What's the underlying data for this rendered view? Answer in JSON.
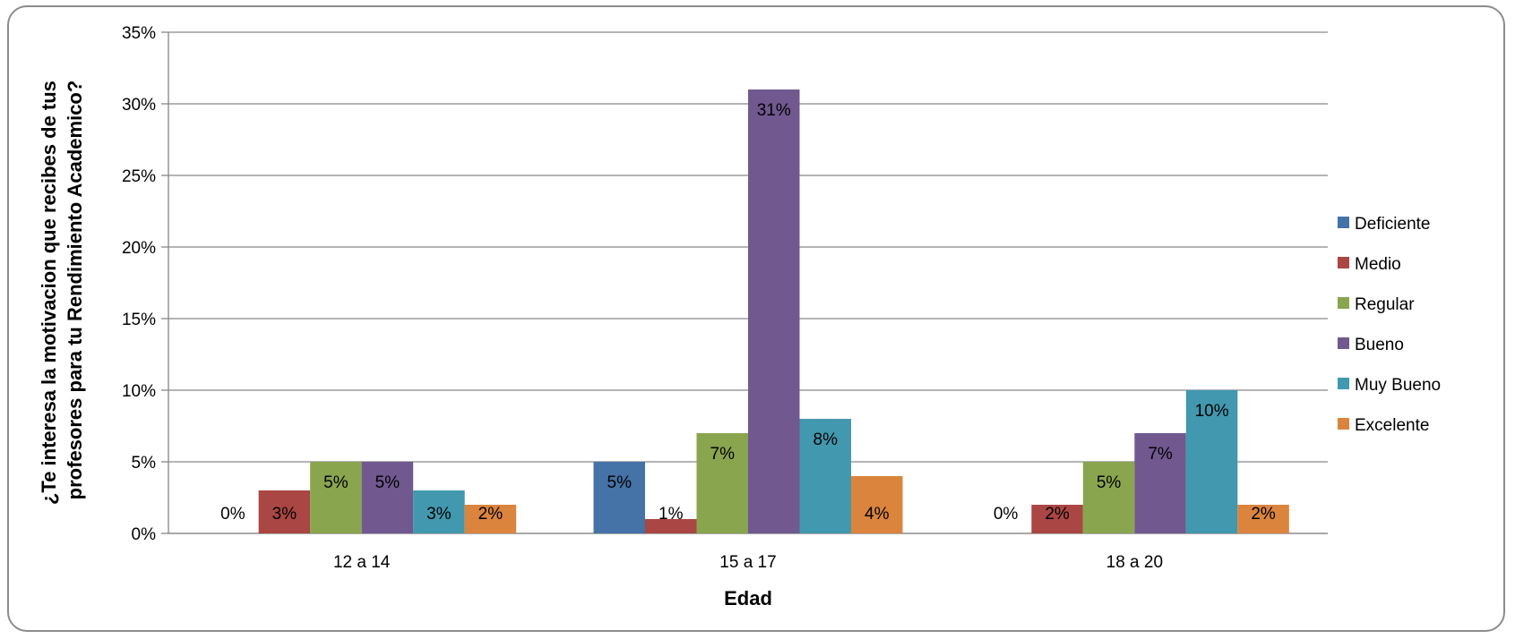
{
  "chart_data": {
    "type": "bar",
    "title": "",
    "xlabel": "Edad",
    "ylabel_lines": [
      "¿Te interesa la motivacion que recibes de tus",
      "profesores para tu Rendimiento Academico?"
    ],
    "categories": [
      "12 a 14",
      "15 a 17",
      "18 a 20"
    ],
    "yticks": [
      "0%",
      "5%",
      "10%",
      "15%",
      "20%",
      "25%",
      "30%",
      "35%"
    ],
    "ylim": [
      0,
      35
    ],
    "grid": true,
    "legend_position": "right",
    "series": [
      {
        "name": "Deficiente",
        "color": "#4572A7",
        "values": [
          0,
          5,
          0
        ],
        "labels": [
          "0%",
          "5%",
          "0%"
        ]
      },
      {
        "name": "Medio",
        "color": "#AA4643",
        "values": [
          3,
          1,
          2
        ],
        "labels": [
          "3%",
          "1%",
          "2%"
        ]
      },
      {
        "name": "Regular",
        "color": "#89A54E",
        "values": [
          5,
          7,
          5
        ],
        "labels": [
          "5%",
          "7%",
          "5%"
        ]
      },
      {
        "name": "Bueno",
        "color": "#71588F",
        "values": [
          5,
          31,
          7
        ],
        "labels": [
          "5%",
          "31%",
          "7%"
        ]
      },
      {
        "name": "Muy Bueno",
        "color": "#4198AF",
        "values": [
          3,
          8,
          10
        ],
        "labels": [
          "3%",
          "8%",
          "10%"
        ]
      },
      {
        "name": "Excelente",
        "color": "#DB843D",
        "values": [
          2,
          4,
          2
        ],
        "labels": [
          "2%",
          "4%",
          "2%"
        ]
      }
    ]
  }
}
